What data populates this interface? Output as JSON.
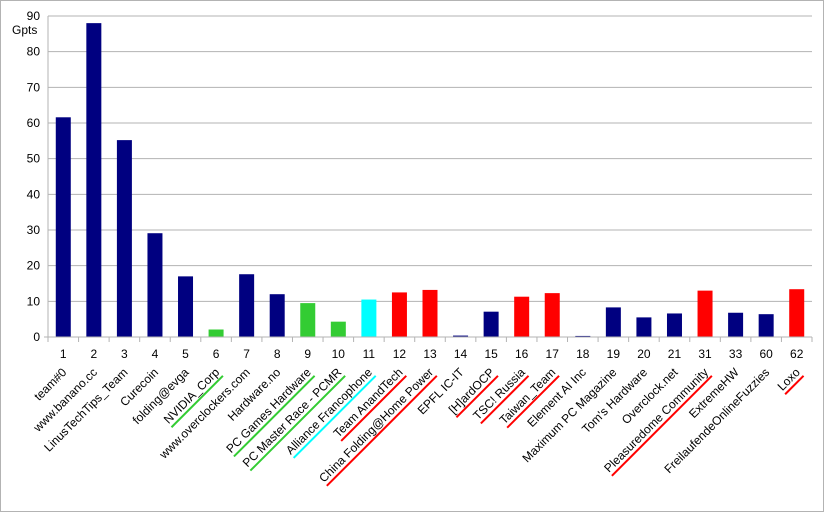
{
  "chart_data": {
    "type": "bar",
    "ylabel": "Gpts",
    "ylim": [
      0,
      90
    ],
    "ytick_step": 10,
    "grid": "horizontal",
    "colors": {
      "team": "#000080",
      "green": "#33cc33",
      "cyan": "#00ffff",
      "red": "#ff0000",
      "grid": "#b3b3b3",
      "axis": "#b3b3b3"
    },
    "categories": [
      "1",
      "2",
      "3",
      "4",
      "5",
      "6",
      "7",
      "8",
      "9",
      "10",
      "11",
      "12",
      "13",
      "14",
      "15",
      "16",
      "17",
      "18",
      "19",
      "20",
      "21",
      "31",
      "33",
      "60",
      "62"
    ],
    "team_names": [
      "team#0",
      "www.banano.cc",
      "LinusTechTips_Team",
      "Curecoin",
      "folding@evga",
      "NVIDIA_Corp",
      "www.overclockers.com",
      "Hardware.no",
      "PC Games Hardware",
      "PC Master Race - PCMR",
      "Alliance Francophone",
      "Team AnandTech",
      "China Folding@Home Power",
      "EPFL IC-IT",
      "[H]ardOCP",
      "TSC! Russia",
      "Taiwan_Team",
      "Element AI Inc",
      "Maximum PC Magazine",
      "Tom's Hardware",
      "Overclock.net",
      "Pleasuredome Community",
      "ExtremeHW",
      "FreilaufendeOnlineFuzzies",
      "Loxo"
    ],
    "values": [
      61.6,
      88.0,
      55.2,
      29.1,
      17.0,
      2.1,
      17.6,
      12.0,
      9.5,
      4.3,
      10.5,
      12.5,
      13.2,
      0.4,
      7.1,
      11.3,
      12.3,
      0.3,
      8.3,
      5.5,
      6.6,
      13.0,
      6.8,
      6.4,
      13.4
    ],
    "bar_colors": [
      "team",
      "team",
      "team",
      "team",
      "team",
      "green",
      "team",
      "team",
      "green",
      "green",
      "cyan",
      "red",
      "red",
      "team",
      "team",
      "red",
      "red",
      "team",
      "team",
      "team",
      "team",
      "red",
      "team",
      "team",
      "red"
    ],
    "name_underline": [
      null,
      null,
      null,
      null,
      null,
      "green",
      null,
      null,
      "green",
      "green",
      "cyan",
      "red",
      "red",
      null,
      "red",
      "red",
      "red",
      null,
      null,
      null,
      null,
      "red",
      null,
      null,
      "red"
    ]
  }
}
